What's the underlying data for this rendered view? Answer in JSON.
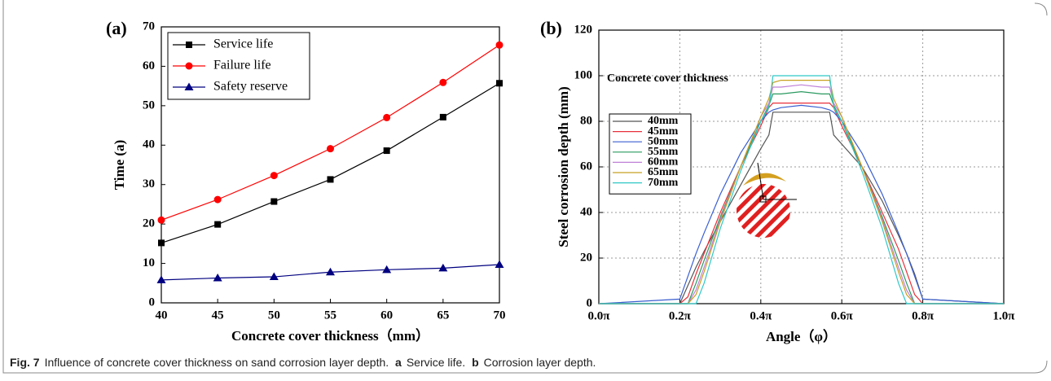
{
  "chart_data": [
    {
      "type": "line",
      "title": "(a)",
      "x_label": "Concrete cover thickness（mm）",
      "y_label": "Time (a)",
      "x": [
        40,
        45,
        50,
        55,
        60,
        65,
        70
      ],
      "xlim": [
        40,
        70
      ],
      "xticks": [
        40,
        45,
        50,
        55,
        60,
        65,
        70
      ],
      "ylim": [
        0,
        70
      ],
      "yticks": [
        0,
        10,
        20,
        30,
        40,
        50,
        60,
        70
      ],
      "grid": false,
      "legend": "upper left",
      "series": [
        {
          "name": "Service life",
          "color": "#000000",
          "marker": "square",
          "values": [
            15.2,
            19.9,
            25.7,
            31.3,
            38.6,
            47.1,
            55.7
          ]
        },
        {
          "name": "Failure life",
          "color": "#ff0000",
          "marker": "circle",
          "values": [
            21,
            26.2,
            32.3,
            39.1,
            47,
            55.9,
            65.4
          ]
        },
        {
          "name": "Safety reserve",
          "color": "#000080",
          "marker": "triangle",
          "values": [
            5.8,
            6.3,
            6.6,
            7.8,
            8.4,
            8.8,
            9.7
          ]
        }
      ]
    },
    {
      "type": "line",
      "title": "(b)",
      "x_label": "Angle（φ）",
      "y_label": "Steel corrosion depth  (mm)",
      "legend_title": "Concrete cover thickness",
      "x": [
        0,
        0.2,
        0.22,
        0.24,
        0.26,
        0.3,
        0.35,
        0.4,
        0.42,
        0.43,
        0.45,
        0.5,
        0.55,
        0.57,
        0.58,
        0.6,
        0.65,
        0.7,
        0.74,
        0.76,
        0.78,
        0.8,
        1.0
      ],
      "xlim": [
        0,
        1
      ],
      "xticks": [
        {
          "value": 0,
          "label": "0.0π"
        },
        {
          "value": 0.2,
          "label": "0.2π"
        },
        {
          "value": 0.4,
          "label": "0.4π"
        },
        {
          "value": 0.6,
          "label": "0.6π"
        },
        {
          "value": 0.8,
          "label": "0.8π"
        },
        {
          "value": 1,
          "label": "1.0π"
        }
      ],
      "ylim": [
        0,
        120
      ],
      "yticks": [
        0,
        20,
        40,
        60,
        80,
        100,
        120
      ],
      "grid": true,
      "legend": "upper left",
      "series": [
        {
          "name": "40mm",
          "color": "#555555",
          "values": [
            0,
            0,
            8,
            16,
            23,
            36,
            52,
            68,
            74,
            84,
            84,
            84,
            84,
            84,
            74,
            70,
            60,
            45,
            30,
            22,
            13,
            2,
            0
          ]
        },
        {
          "name": "45mm",
          "color": "#e8303a",
          "values": [
            0,
            0,
            3,
            13,
            22,
            40,
            60,
            78,
            86,
            88,
            88,
            88,
            88,
            88,
            86,
            78,
            60,
            40,
            24,
            14,
            4,
            0,
            0
          ]
        },
        {
          "name": "50mm",
          "color": "#3a5fd0",
          "values": [
            0,
            2,
            12,
            22,
            31,
            48,
            66,
            80,
            84,
            85,
            86,
            87,
            86,
            85,
            84,
            80,
            66,
            48,
            31,
            22,
            12,
            2,
            0
          ]
        },
        {
          "name": "55mm",
          "color": "#2a9a60",
          "values": [
            0,
            0,
            0,
            9,
            19,
            38,
            60,
            80,
            87,
            92,
            92,
            93,
            92,
            92,
            87,
            80,
            60,
            38,
            19,
            9,
            0,
            0,
            0
          ]
        },
        {
          "name": "60mm",
          "color": "#c080d8",
          "values": [
            0,
            0,
            0,
            6,
            16,
            37,
            60,
            82,
            88,
            95,
            95,
            96,
            95,
            95,
            88,
            82,
            60,
            37,
            16,
            6,
            0,
            0,
            0
          ]
        },
        {
          "name": "65mm",
          "color": "#c8a020",
          "values": [
            0,
            0,
            0,
            4,
            14,
            36,
            60,
            82,
            90,
            97,
            98,
            98,
            98,
            98,
            90,
            82,
            60,
            36,
            14,
            4,
            0,
            0,
            0
          ]
        },
        {
          "name": "70mm",
          "color": "#30c8c8",
          "values": [
            0,
            0,
            0,
            0,
            9,
            33,
            58,
            80,
            86,
            100,
            100,
            100,
            100,
            100,
            86,
            80,
            58,
            33,
            9,
            0,
            0,
            0,
            0
          ]
        }
      ]
    }
  ],
  "caption": {
    "label": "Fig. 7",
    "text": "Influence of concrete cover thickness on sand corrosion layer depth.",
    "items": [
      {
        "label": "a",
        "text": "Service life."
      },
      {
        "label": "b",
        "text": "Corrosion layer depth."
      }
    ]
  }
}
